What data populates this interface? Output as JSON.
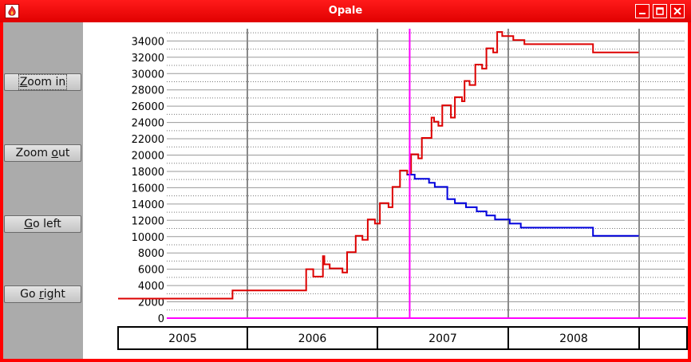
{
  "window": {
    "title": "Opale"
  },
  "buttons": {
    "zoom_in": {
      "pre": "",
      "mn": "Z",
      "post": "oom in"
    },
    "zoom_out": {
      "pre": "Zoom ",
      "mn": "o",
      "post": "ut"
    },
    "go_left": {
      "pre": "",
      "mn": "G",
      "post": "o left"
    },
    "go_right": {
      "pre": "Go ",
      "mn": "r",
      "post": "ight"
    }
  },
  "chart_data": {
    "type": "line",
    "title": "",
    "xlabel": "",
    "ylabel": "",
    "ylim": [
      0,
      35000
    ],
    "xlim": [
      "2005-01-01",
      "2008-12-31"
    ],
    "y_ticks": [
      0,
      2000,
      4000,
      6000,
      8000,
      10000,
      12000,
      14000,
      16000,
      18000,
      20000,
      22000,
      24000,
      26000,
      28000,
      30000,
      32000,
      34000
    ],
    "x_categories": [
      "2005",
      "2006",
      "2007",
      "2008"
    ],
    "grid": true,
    "cursor_date": "2007-04-01",
    "colors": {
      "series_a": "#dd0000",
      "series_b": "#0000dd",
      "cursor": "#ff00ff",
      "baseline": "#ff00ff"
    },
    "series": [
      {
        "color": "#dd0000",
        "points": [
          [
            "2005-01-01",
            2400
          ],
          [
            "2005-11-20",
            2400
          ],
          [
            "2005-11-20",
            3400
          ],
          [
            "2006-06-15",
            3400
          ],
          [
            "2006-06-15",
            6000
          ],
          [
            "2006-07-05",
            6000
          ],
          [
            "2006-07-05",
            5100
          ],
          [
            "2006-08-01",
            5100
          ],
          [
            "2006-08-01",
            7600
          ],
          [
            "2006-08-05",
            7600
          ],
          [
            "2006-08-05",
            6600
          ],
          [
            "2006-08-20",
            6600
          ],
          [
            "2006-08-20",
            6100
          ],
          [
            "2006-09-25",
            6100
          ],
          [
            "2006-09-25",
            5600
          ],
          [
            "2006-10-08",
            5600
          ],
          [
            "2006-10-08",
            8100
          ],
          [
            "2006-11-01",
            8100
          ],
          [
            "2006-11-01",
            10100
          ],
          [
            "2006-11-20",
            10100
          ],
          [
            "2006-11-20",
            9600
          ],
          [
            "2006-12-05",
            9600
          ],
          [
            "2006-12-05",
            12100
          ],
          [
            "2006-12-25",
            12100
          ],
          [
            "2006-12-25",
            11600
          ],
          [
            "2007-01-08",
            11600
          ],
          [
            "2007-01-08",
            14100
          ],
          [
            "2007-02-01",
            14100
          ],
          [
            "2007-02-01",
            13600
          ],
          [
            "2007-02-12",
            13600
          ],
          [
            "2007-02-12",
            16100
          ],
          [
            "2007-03-05",
            16100
          ],
          [
            "2007-03-05",
            18100
          ],
          [
            "2007-03-25",
            18100
          ],
          [
            "2007-03-25",
            17600
          ],
          [
            "2007-04-05",
            17600
          ],
          [
            "2007-04-05",
            20100
          ],
          [
            "2007-04-25",
            20100
          ],
          [
            "2007-04-25",
            19600
          ],
          [
            "2007-05-05",
            19600
          ],
          [
            "2007-05-05",
            22100
          ],
          [
            "2007-06-01",
            22100
          ],
          [
            "2007-06-01",
            24600
          ],
          [
            "2007-06-08",
            24600
          ],
          [
            "2007-06-08",
            24100
          ],
          [
            "2007-06-20",
            24100
          ],
          [
            "2007-06-20",
            23600
          ],
          [
            "2007-07-01",
            23600
          ],
          [
            "2007-07-01",
            26100
          ],
          [
            "2007-07-25",
            26100
          ],
          [
            "2007-07-25",
            24600
          ],
          [
            "2007-08-05",
            24600
          ],
          [
            "2007-08-05",
            27100
          ],
          [
            "2007-08-25",
            27100
          ],
          [
            "2007-08-25",
            26600
          ],
          [
            "2007-09-01",
            26600
          ],
          [
            "2007-09-01",
            29100
          ],
          [
            "2007-09-15",
            29100
          ],
          [
            "2007-09-15",
            28600
          ],
          [
            "2007-10-01",
            28600
          ],
          [
            "2007-10-01",
            31100
          ],
          [
            "2007-10-20",
            31100
          ],
          [
            "2007-10-20",
            30600
          ],
          [
            "2007-11-01",
            30600
          ],
          [
            "2007-11-01",
            33100
          ],
          [
            "2007-11-20",
            33100
          ],
          [
            "2007-11-20",
            32600
          ],
          [
            "2007-12-01",
            32600
          ],
          [
            "2007-12-01",
            35100
          ],
          [
            "2007-12-15",
            35100
          ],
          [
            "2007-12-15",
            34600
          ],
          [
            "2008-01-15",
            34600
          ],
          [
            "2008-01-15",
            34100
          ],
          [
            "2008-02-15",
            34100
          ],
          [
            "2008-02-15",
            33600
          ],
          [
            "2008-08-25",
            33600
          ],
          [
            "2008-08-25",
            32600
          ],
          [
            "2008-12-31",
            32600
          ]
        ]
      },
      {
        "color": "#0000dd",
        "points": [
          [
            "2007-03-25",
            17600
          ],
          [
            "2007-04-15",
            17600
          ],
          [
            "2007-04-15",
            17100
          ],
          [
            "2007-05-25",
            17100
          ],
          [
            "2007-05-25",
            16600
          ],
          [
            "2007-06-10",
            16600
          ],
          [
            "2007-06-10",
            16100
          ],
          [
            "2007-07-15",
            16100
          ],
          [
            "2007-07-15",
            14600
          ],
          [
            "2007-08-05",
            14600
          ],
          [
            "2007-08-05",
            14100
          ],
          [
            "2007-09-05",
            14100
          ],
          [
            "2007-09-05",
            13600
          ],
          [
            "2007-10-05",
            13600
          ],
          [
            "2007-10-05",
            13100
          ],
          [
            "2007-11-01",
            13100
          ],
          [
            "2007-11-01",
            12600
          ],
          [
            "2007-11-25",
            12600
          ],
          [
            "2007-11-25",
            12100
          ],
          [
            "2008-01-05",
            12100
          ],
          [
            "2008-01-05",
            11600
          ],
          [
            "2008-02-05",
            11600
          ],
          [
            "2008-02-05",
            11100
          ],
          [
            "2008-08-25",
            11100
          ],
          [
            "2008-08-25",
            10100
          ],
          [
            "2008-12-31",
            10100
          ]
        ]
      }
    ]
  }
}
